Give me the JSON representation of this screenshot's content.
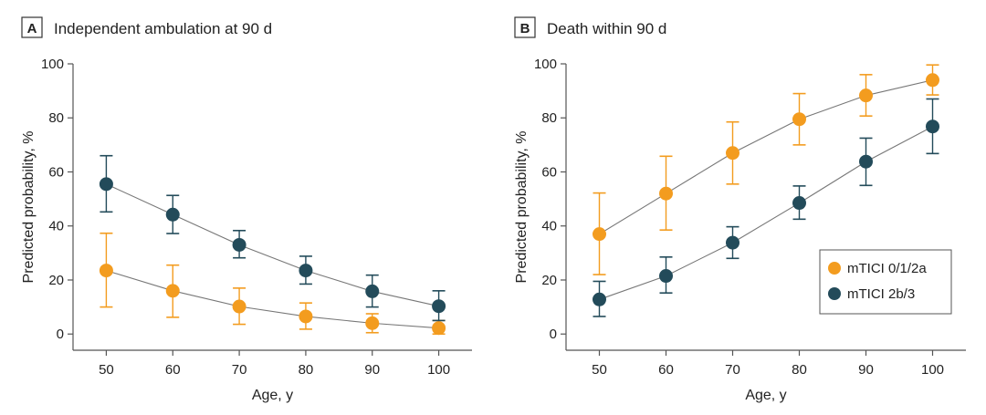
{
  "colors": {
    "orange": "#f39c1f",
    "teal": "#234b5a",
    "axis": "#555555",
    "connector": "#777777",
    "text": "#222222"
  },
  "chart_data": [
    {
      "type": "scatter",
      "panel_label": "A",
      "title": "Independent ambulation at 90 d",
      "xlabel": "Age, y",
      "ylabel": "Predicted probability, %",
      "xlim": [
        45,
        105
      ],
      "ylim": [
        -6,
        100
      ],
      "x_ticks": [
        50,
        60,
        70,
        80,
        90,
        100
      ],
      "y_ticks": [
        0,
        20,
        40,
        60,
        80,
        100
      ],
      "grid": false,
      "legend": null,
      "series": [
        {
          "name": "mTICI 0/1/2a",
          "color": "#f39c1f",
          "x": [
            50,
            60,
            70,
            80,
            90,
            100
          ],
          "y": [
            23.5,
            16,
            10.2,
            6.5,
            4,
            2.2
          ],
          "lower": [
            10,
            6.2,
            3.6,
            1.8,
            0.5,
            0
          ],
          "upper": [
            37.3,
            25.5,
            17,
            11.5,
            7.5,
            5
          ]
        },
        {
          "name": "mTICI 2b/3",
          "color": "#234b5a",
          "x": [
            50,
            60,
            70,
            80,
            90,
            100
          ],
          "y": [
            55.5,
            44.2,
            33,
            23.5,
            15.8,
            10.3
          ],
          "lower": [
            45.2,
            37.2,
            28.2,
            18.5,
            10,
            5
          ],
          "upper": [
            66,
            51.3,
            38.3,
            28.8,
            21.8,
            16
          ]
        }
      ]
    },
    {
      "type": "scatter",
      "panel_label": "B",
      "title": "Death within 90 d",
      "xlabel": "Age, y",
      "ylabel": "Predicted probability, %",
      "xlim": [
        45,
        105
      ],
      "ylim": [
        -6,
        100
      ],
      "x_ticks": [
        50,
        60,
        70,
        80,
        90,
        100
      ],
      "y_ticks": [
        0,
        20,
        40,
        60,
        80,
        100
      ],
      "grid": false,
      "legend": "bottom-right",
      "series": [
        {
          "name": "mTICI 0/1/2a",
          "color": "#f39c1f",
          "x": [
            50,
            60,
            70,
            80,
            90,
            100
          ],
          "y": [
            37,
            52,
            67,
            79.5,
            88.3,
            94
          ],
          "lower": [
            22,
            38.5,
            55.5,
            70,
            80.7,
            88.5
          ],
          "upper": [
            52.2,
            65.8,
            78.5,
            89,
            96,
            99.6
          ]
        },
        {
          "name": "mTICI 2b/3",
          "color": "#234b5a",
          "x": [
            50,
            60,
            70,
            80,
            90,
            100
          ],
          "y": [
            12.8,
            21.5,
            33.8,
            48.5,
            63.8,
            76.8
          ],
          "lower": [
            6.5,
            15.2,
            28,
            42.5,
            55,
            66.8
          ],
          "upper": [
            19.5,
            28.5,
            39.7,
            54.8,
            72.5,
            87
          ]
        }
      ]
    }
  ]
}
